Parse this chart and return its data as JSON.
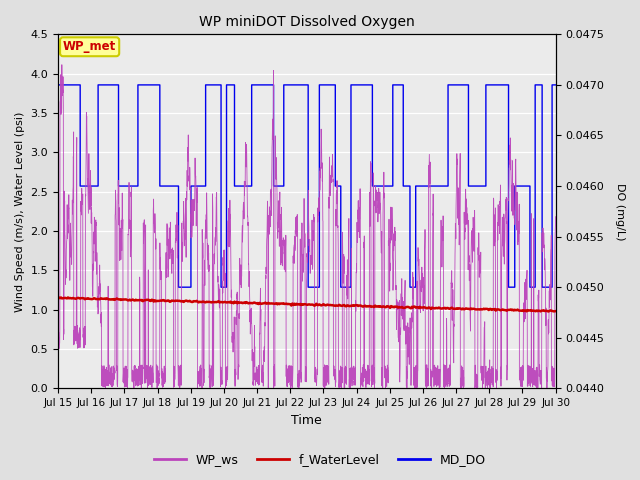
{
  "title": "WP miniDOT Dissolved Oxygen",
  "xlabel": "Time",
  "ylabel_left": "Wind Speed (m/s), Water Level (psi)",
  "ylabel_right": "DO (mg/L)",
  "ylim_left": [
    0.0,
    4.5
  ],
  "ylim_right": [
    0.044,
    0.0475
  ],
  "xtick_labels": [
    "Jul 15",
    "Jul 16",
    "Jul 17",
    "Jul 18",
    "Jul 19",
    "Jul 20",
    "Jul 21",
    "Jul 22",
    "Jul 23",
    "Jul 24",
    "Jul 25",
    "Jul 26",
    "Jul 27",
    "Jul 28",
    "Jul 29",
    "Jul 30"
  ],
  "yticks_left": [
    0.0,
    0.5,
    1.0,
    1.5,
    2.0,
    2.5,
    3.0,
    3.5,
    4.0,
    4.5
  ],
  "yticks_right": [
    0.044,
    0.0445,
    0.045,
    0.0455,
    0.046,
    0.0465,
    0.047,
    0.0475
  ],
  "bg_color": "#e0e0e0",
  "plot_bg_color": "#ebebeb",
  "wp_ws_color": "#bb44bb",
  "f_water_color": "#cc0000",
  "md_do_color": "#0000ee",
  "legend_label_ws": "WP_ws",
  "legend_label_wl": "f_WaterLevel",
  "legend_label_do": "MD_DO",
  "annotation_text": "WP_met",
  "annotation_color": "#cc0000",
  "annotation_bg": "#ffff99",
  "annotation_border": "#cccc00",
  "n_days": 15
}
